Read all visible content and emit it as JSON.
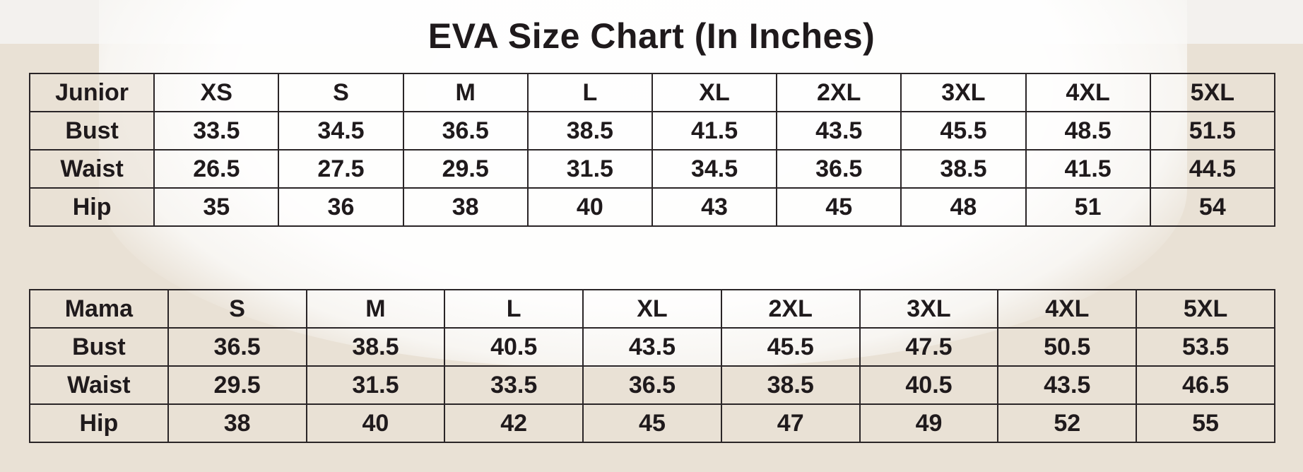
{
  "title": "EVA Size Chart (In Inches)",
  "junior": {
    "header": [
      "Junior",
      "XS",
      "S",
      "M",
      "L",
      "XL",
      "2XL",
      "3XL",
      "4XL",
      "5XL"
    ],
    "rows": [
      [
        "Bust",
        "33.5",
        "34.5",
        "36.5",
        "38.5",
        "41.5",
        "43.5",
        "45.5",
        "48.5",
        "51.5"
      ],
      [
        "Waist",
        "26.5",
        "27.5",
        "29.5",
        "31.5",
        "34.5",
        "36.5",
        "38.5",
        "41.5",
        "44.5"
      ],
      [
        "Hip",
        "35",
        "36",
        "38",
        "40",
        "43",
        "45",
        "48",
        "51",
        "54"
      ]
    ]
  },
  "mama": {
    "header": [
      "Mama",
      "S",
      "M",
      "L",
      "XL",
      "2XL",
      "3XL",
      "4XL",
      "5XL"
    ],
    "rows": [
      [
        "Bust",
        "36.5",
        "38.5",
        "40.5",
        "43.5",
        "45.5",
        "47.5",
        "50.5",
        "53.5"
      ],
      [
        "Waist",
        "29.5",
        "31.5",
        "33.5",
        "36.5",
        "38.5",
        "40.5",
        "43.5",
        "46.5"
      ],
      [
        "Hip",
        "38",
        "40",
        "42",
        "45",
        "47",
        "49",
        "52",
        "55"
      ]
    ]
  }
}
